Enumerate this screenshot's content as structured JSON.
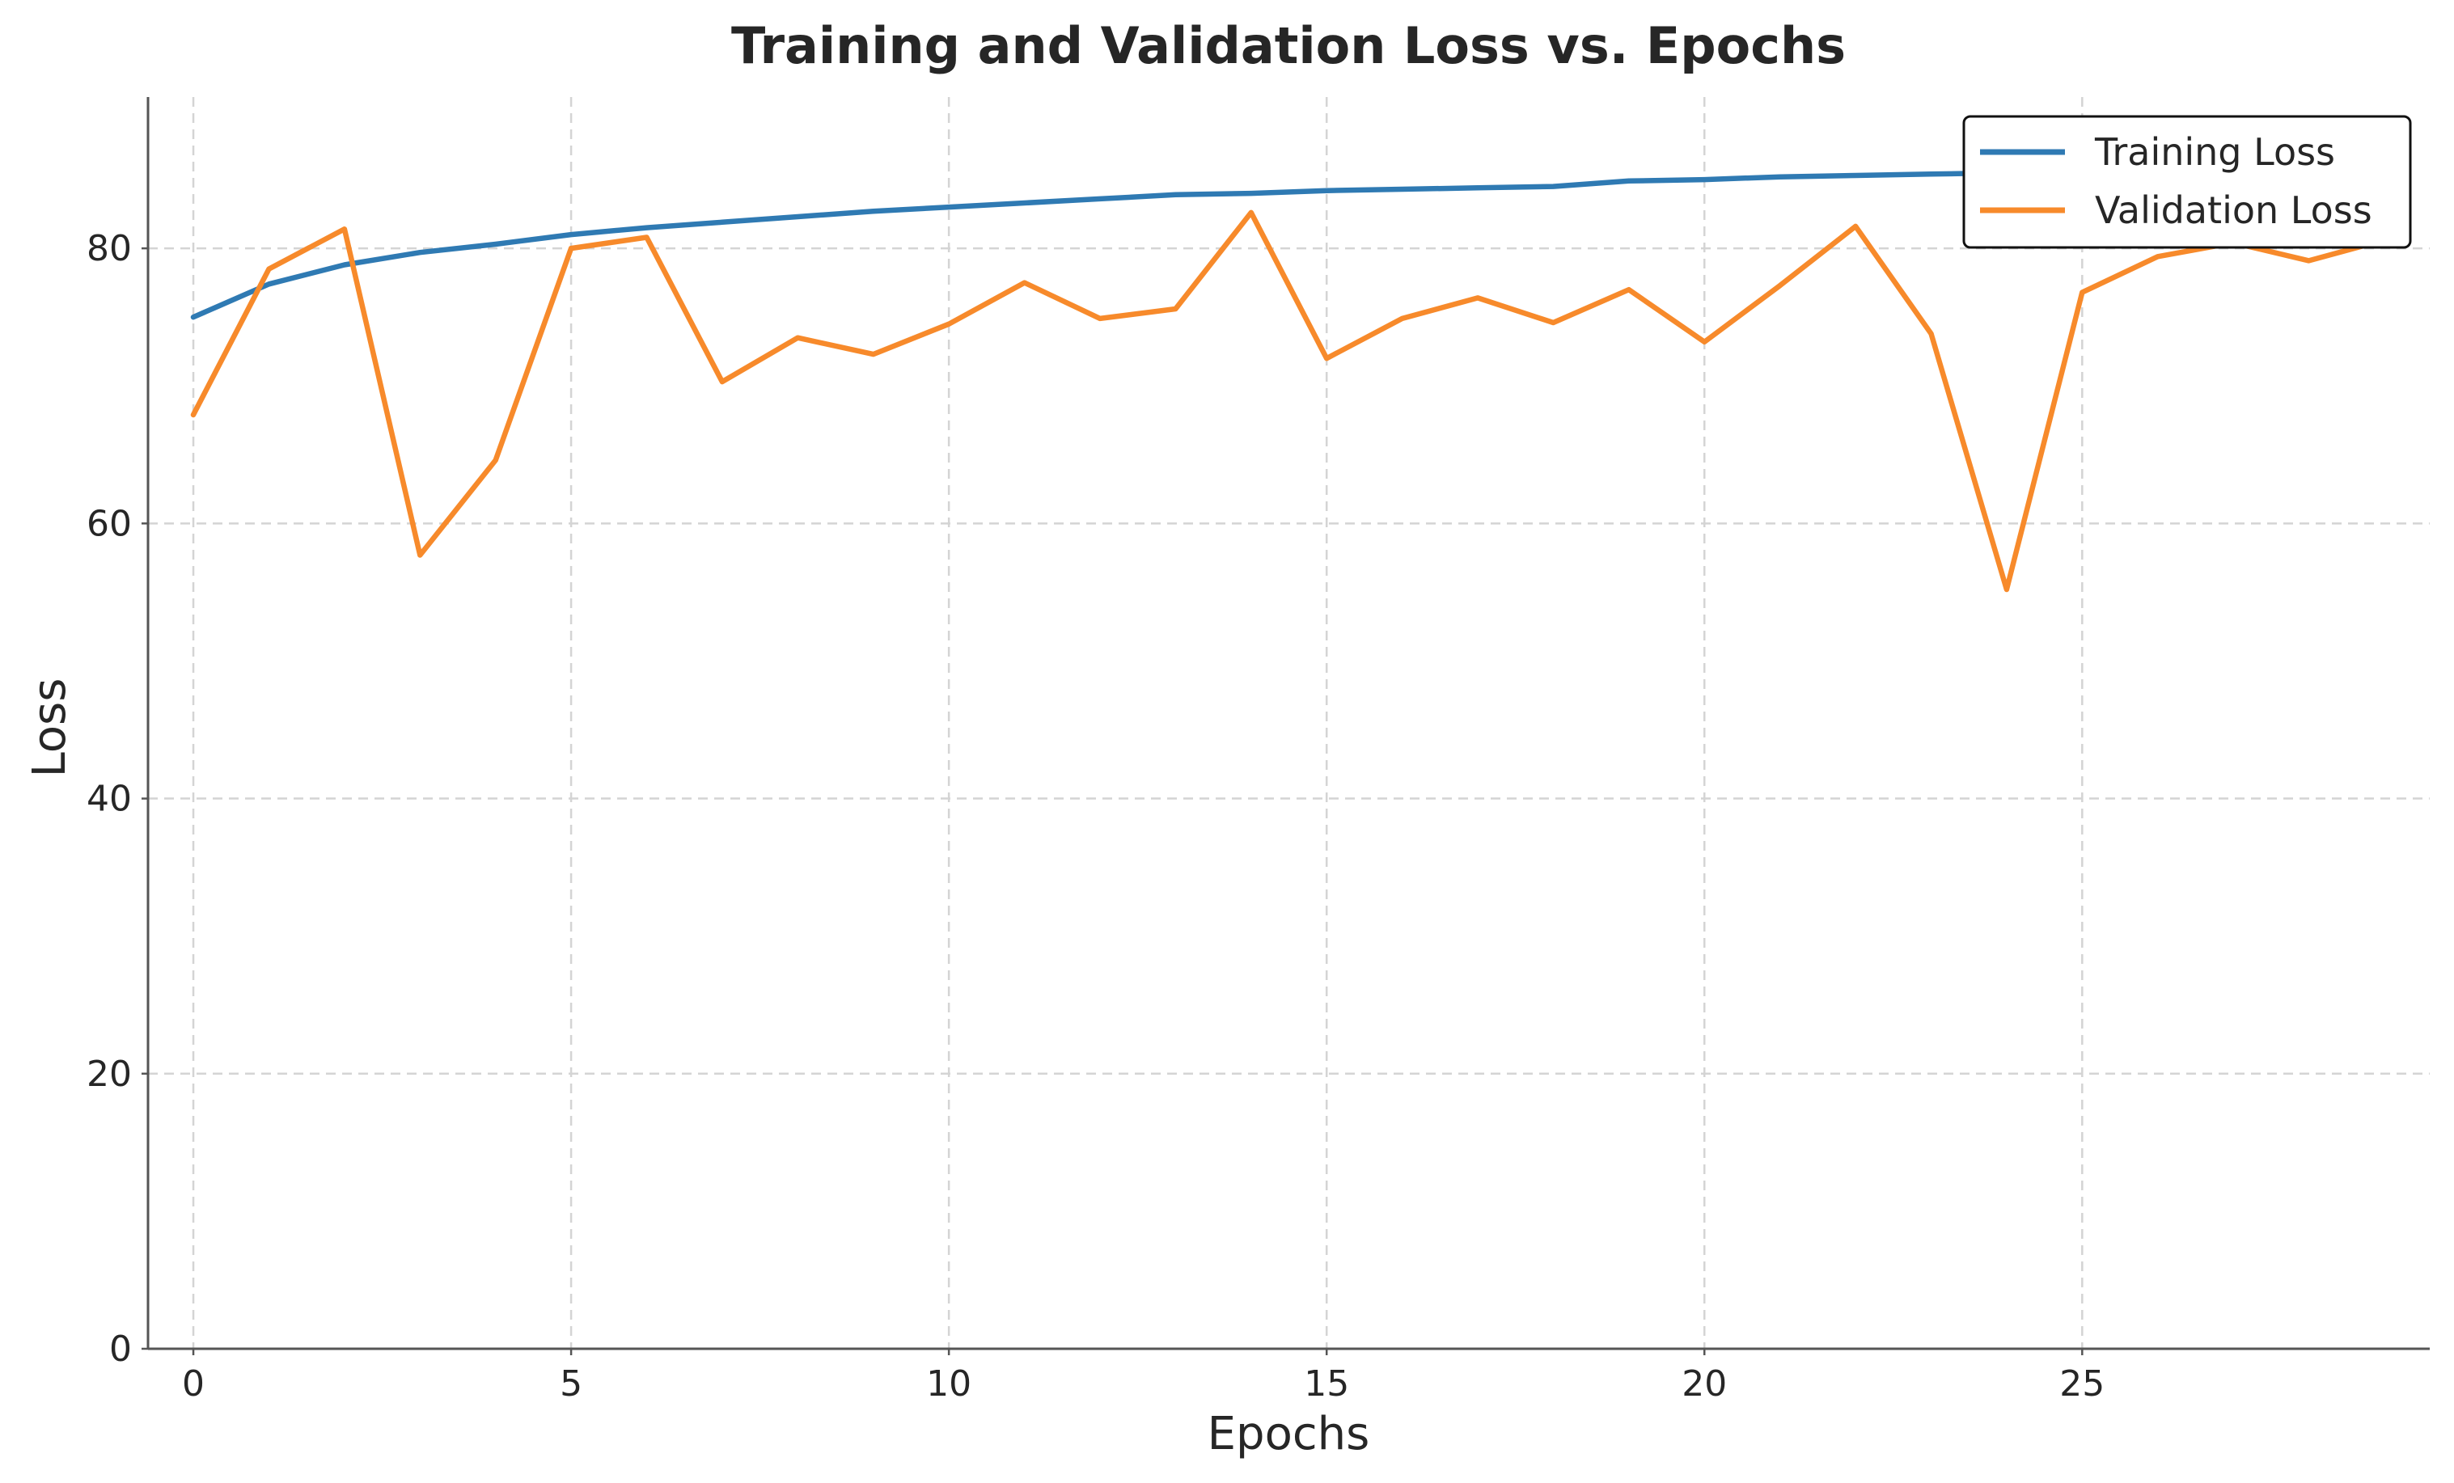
{
  "chart_data": {
    "type": "line",
    "title": "Training and Validation Loss vs. Epochs",
    "xlabel": "Epochs",
    "ylabel": "Loss",
    "xlim": [
      -0.6,
      29.6
    ],
    "ylim": [
      0,
      91
    ],
    "xticks": [
      0,
      5,
      10,
      15,
      20,
      25
    ],
    "yticks": [
      0,
      20,
      40,
      60,
      80
    ],
    "grid": true,
    "legend_position": "top-right",
    "x": [
      0,
      1,
      2,
      3,
      4,
      5,
      6,
      7,
      8,
      9,
      10,
      11,
      12,
      13,
      14,
      15,
      16,
      17,
      18,
      19,
      20,
      21,
      22,
      23,
      24,
      25,
      26,
      27,
      28,
      29
    ],
    "series": [
      {
        "name": "Training Loss",
        "color": "#2f7ab3",
        "values": [
          75.0,
          77.4,
          78.8,
          79.7,
          80.3,
          81.0,
          81.5,
          81.9,
          82.3,
          82.7,
          83.0,
          83.3,
          83.6,
          83.9,
          84.0,
          84.2,
          84.3,
          84.4,
          84.5,
          84.9,
          85.0,
          85.2,
          85.3,
          85.4,
          85.5,
          85.6,
          85.7,
          85.8,
          85.9,
          86.0
        ]
      },
      {
        "name": "Validation Loss",
        "color": "#f78a2b",
        "values": [
          67.9,
          78.5,
          81.4,
          57.7,
          64.6,
          80.0,
          80.8,
          70.3,
          73.5,
          72.3,
          74.5,
          77.5,
          74.9,
          75.6,
          82.6,
          72.0,
          74.9,
          76.4,
          74.6,
          77.0,
          73.2,
          77.3,
          81.6,
          73.8,
          55.2,
          76.8,
          79.4,
          80.4,
          79.1,
          80.6
        ]
      }
    ]
  }
}
